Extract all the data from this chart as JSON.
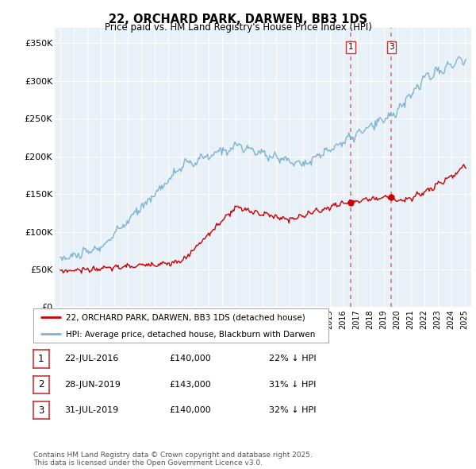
{
  "title": "22, ORCHARD PARK, DARWEN, BB3 1DS",
  "subtitle": "Price paid vs. HM Land Registry's House Price Index (HPI)",
  "ylim": [
    0,
    370000
  ],
  "yticks": [
    0,
    50000,
    100000,
    150000,
    200000,
    250000,
    300000,
    350000
  ],
  "ytick_labels": [
    "£0",
    "£50K",
    "£100K",
    "£150K",
    "£200K",
    "£250K",
    "£300K",
    "£350K"
  ],
  "red_line_color": "#cc0000",
  "blue_line_color": "#7fb3d3",
  "vline_color": "#e87070",
  "legend_red_label": "22, ORCHARD PARK, DARWEN, BB3 1DS (detached house)",
  "legend_blue_label": "HPI: Average price, detached house, Blackburn with Darwen",
  "table_rows": [
    [
      "1",
      "22-JUL-2016",
      "£140,000",
      "22% ↓ HPI"
    ],
    [
      "2",
      "28-JUN-2019",
      "£143,000",
      "31% ↓ HPI"
    ],
    [
      "3",
      "31-JUL-2019",
      "£140,000",
      "32% ↓ HPI"
    ]
  ],
  "footer_text": "Contains HM Land Registry data © Crown copyright and database right 2025.\nThis data is licensed under the Open Government Licence v3.0.",
  "annotation_labels": [
    "1",
    "3"
  ],
  "vline_x": [
    2016.55,
    2019.58
  ],
  "chart_bg_color": "#e8f0f8",
  "chart_bg_color2": "#f0f4fa"
}
